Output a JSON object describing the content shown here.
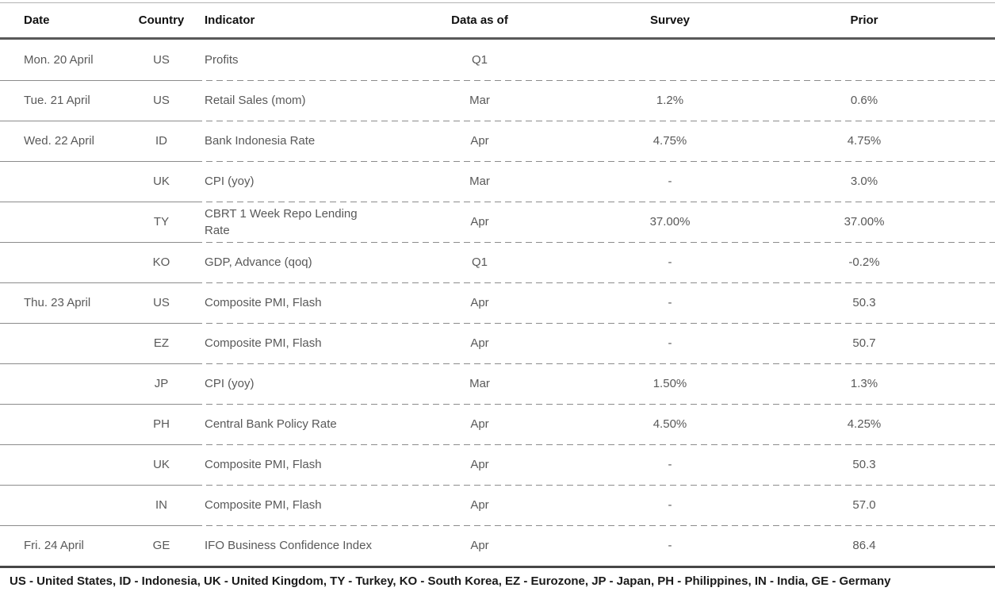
{
  "table": {
    "columns": [
      {
        "key": "date",
        "label": "Date"
      },
      {
        "key": "country",
        "label": "Country"
      },
      {
        "key": "indicator",
        "label": "Indicator"
      },
      {
        "key": "data_as_of",
        "label": "Data as of"
      },
      {
        "key": "survey",
        "label": "Survey"
      },
      {
        "key": "prior",
        "label": "Prior"
      }
    ],
    "rows": [
      {
        "date": "Mon. 20 April",
        "country": "US",
        "indicator": "Profits",
        "data_as_of": "Q1",
        "survey": "",
        "prior": ""
      },
      {
        "date": "Tue. 21 April",
        "country": "US",
        "indicator": "Retail Sales (mom)",
        "data_as_of": "Mar",
        "survey": "1.2%",
        "prior": "0.6%"
      },
      {
        "date": "Wed. 22 April",
        "country": "ID",
        "indicator": "Bank Indonesia Rate",
        "data_as_of": "Apr",
        "survey": "4.75%",
        "prior": "4.75%"
      },
      {
        "date": "",
        "country": "UK",
        "indicator": "CPI (yoy)",
        "data_as_of": "Mar",
        "survey": "-",
        "prior": "3.0%"
      },
      {
        "date": "",
        "country": "TY",
        "indicator": "CBRT 1 Week Repo Lending\nRate",
        "data_as_of": "Apr",
        "survey": "37.00%",
        "prior": "37.00%"
      },
      {
        "date": "",
        "country": "KO",
        "indicator": "GDP, Advance (qoq)",
        "data_as_of": "Q1",
        "survey": "-",
        "prior": "-0.2%"
      },
      {
        "date": "Thu. 23 April",
        "country": "US",
        "indicator": "Composite PMI, Flash",
        "data_as_of": "Apr",
        "survey": "-",
        "prior": "50.3"
      },
      {
        "date": "",
        "country": "EZ",
        "indicator": "Composite PMI, Flash",
        "data_as_of": "Apr",
        "survey": "-",
        "prior": "50.7"
      },
      {
        "date": "",
        "country": "JP",
        "indicator": "CPI (yoy)",
        "data_as_of": "Mar",
        "survey": "1.50%",
        "prior": "1.3%"
      },
      {
        "date": "",
        "country": "PH",
        "indicator": "Central Bank Policy Rate",
        "data_as_of": "Apr",
        "survey": "4.50%",
        "prior": "4.25%"
      },
      {
        "date": "",
        "country": "UK",
        "indicator": "Composite PMI, Flash",
        "data_as_of": "Apr",
        "survey": "-",
        "prior": "50.3"
      },
      {
        "date": "",
        "country": "IN",
        "indicator": "Composite PMI, Flash",
        "data_as_of": "Apr",
        "survey": "-",
        "prior": "57.0"
      },
      {
        "date": "Fri. 24 April",
        "country": "GE",
        "indicator": "IFO Business Confidence Index",
        "data_as_of": "Apr",
        "survey": "-",
        "prior": "86.4"
      }
    ],
    "footnote": "US - United States, ID - Indonesia, UK - United Kingdom, TY - Turkey, KO - South Korea, EZ - Eurozone, JP - Japan, PH - Philippines, IN - India, GE - Germany"
  },
  "colors": {
    "header_text": "#111111",
    "body_text": "#595959",
    "rule_dark": "#595959",
    "rule_light": "#8c8c8c",
    "footnote_text": "#1a1a1a"
  }
}
